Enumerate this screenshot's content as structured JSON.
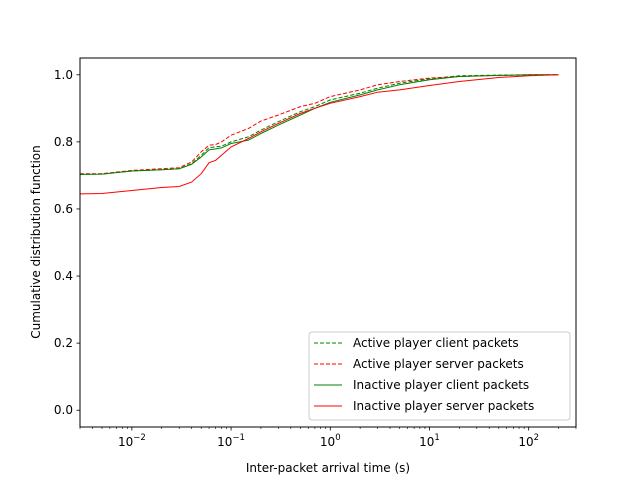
{
  "chart_data": {
    "type": "line",
    "title": "",
    "xlabel": "Inter-packet arrival time (s)",
    "ylabel": "Cumulative distribution function",
    "xscale": "log",
    "xlim": [
      0.003,
      300
    ],
    "ylim": [
      -0.05,
      1.05
    ],
    "x_ticks": [
      {
        "value": 0.01,
        "base": "10",
        "exp": "−2"
      },
      {
        "value": 0.1,
        "base": "10",
        "exp": "−1"
      },
      {
        "value": 1,
        "base": "10",
        "exp": "0"
      },
      {
        "value": 10,
        "base": "10",
        "exp": "1"
      },
      {
        "value": 100,
        "base": "10",
        "exp": "2"
      }
    ],
    "y_ticks": [
      "0.0",
      "0.2",
      "0.4",
      "0.6",
      "0.8",
      "1.0"
    ],
    "grid": false,
    "legend_position": "lower-right",
    "series": [
      {
        "name": "Active player client packets",
        "color": "#008000",
        "dash": "dashed",
        "points": [
          [
            0.003,
            0.703
          ],
          [
            0.005,
            0.704
          ],
          [
            0.01,
            0.713
          ],
          [
            0.02,
            0.717
          ],
          [
            0.03,
            0.72
          ],
          [
            0.04,
            0.735
          ],
          [
            0.05,
            0.76
          ],
          [
            0.06,
            0.783
          ],
          [
            0.07,
            0.785
          ],
          [
            0.08,
            0.787
          ],
          [
            0.1,
            0.8
          ],
          [
            0.15,
            0.815
          ],
          [
            0.2,
            0.835
          ],
          [
            0.3,
            0.86
          ],
          [
            0.5,
            0.89
          ],
          [
            0.7,
            0.905
          ],
          [
            1,
            0.925
          ],
          [
            2,
            0.945
          ],
          [
            3,
            0.96
          ],
          [
            5,
            0.975
          ],
          [
            10,
            0.988
          ],
          [
            20,
            0.997
          ],
          [
            50,
            0.999
          ],
          [
            100,
            1.0
          ],
          [
            200,
            1.0
          ]
        ]
      },
      {
        "name": "Active player server packets",
        "color": "#ff0000",
        "dash": "dashed",
        "points": [
          [
            0.003,
            0.705
          ],
          [
            0.005,
            0.705
          ],
          [
            0.01,
            0.715
          ],
          [
            0.02,
            0.72
          ],
          [
            0.03,
            0.723
          ],
          [
            0.04,
            0.74
          ],
          [
            0.05,
            0.77
          ],
          [
            0.06,
            0.79
          ],
          [
            0.07,
            0.792
          ],
          [
            0.08,
            0.8
          ],
          [
            0.1,
            0.82
          ],
          [
            0.15,
            0.84
          ],
          [
            0.2,
            0.862
          ],
          [
            0.3,
            0.88
          ],
          [
            0.5,
            0.905
          ],
          [
            0.7,
            0.915
          ],
          [
            1,
            0.935
          ],
          [
            2,
            0.955
          ],
          [
            3,
            0.97
          ],
          [
            5,
            0.98
          ],
          [
            10,
            0.99
          ],
          [
            20,
            0.995
          ],
          [
            50,
            0.998
          ],
          [
            100,
            0.999
          ],
          [
            200,
            1.0
          ]
        ]
      },
      {
        "name": "Inactive player client packets",
        "color": "#008000",
        "dash": "solid",
        "points": [
          [
            0.003,
            0.703
          ],
          [
            0.005,
            0.704
          ],
          [
            0.01,
            0.713
          ],
          [
            0.02,
            0.717
          ],
          [
            0.03,
            0.72
          ],
          [
            0.04,
            0.733
          ],
          [
            0.05,
            0.755
          ],
          [
            0.06,
            0.776
          ],
          [
            0.07,
            0.779
          ],
          [
            0.08,
            0.782
          ],
          [
            0.1,
            0.795
          ],
          [
            0.15,
            0.805
          ],
          [
            0.2,
            0.825
          ],
          [
            0.3,
            0.85
          ],
          [
            0.5,
            0.88
          ],
          [
            0.7,
            0.9
          ],
          [
            1,
            0.918
          ],
          [
            2,
            0.94
          ],
          [
            3,
            0.955
          ],
          [
            5,
            0.97
          ],
          [
            10,
            0.985
          ],
          [
            20,
            0.995
          ],
          [
            50,
            0.998
          ],
          [
            100,
            1.0
          ],
          [
            200,
            1.0
          ]
        ]
      },
      {
        "name": "Inactive player server packets",
        "color": "#ff0000",
        "dash": "solid",
        "points": [
          [
            0.003,
            0.645
          ],
          [
            0.005,
            0.646
          ],
          [
            0.01,
            0.655
          ],
          [
            0.02,
            0.664
          ],
          [
            0.03,
            0.667
          ],
          [
            0.04,
            0.68
          ],
          [
            0.05,
            0.705
          ],
          [
            0.06,
            0.738
          ],
          [
            0.07,
            0.745
          ],
          [
            0.08,
            0.76
          ],
          [
            0.1,
            0.785
          ],
          [
            0.15,
            0.81
          ],
          [
            0.2,
            0.83
          ],
          [
            0.3,
            0.855
          ],
          [
            0.5,
            0.885
          ],
          [
            0.7,
            0.9
          ],
          [
            1,
            0.915
          ],
          [
            2,
            0.935
          ],
          [
            3,
            0.948
          ],
          [
            5,
            0.955
          ],
          [
            10,
            0.968
          ],
          [
            20,
            0.98
          ],
          [
            50,
            0.992
          ],
          [
            100,
            0.997
          ],
          [
            200,
            1.0
          ]
        ]
      }
    ]
  }
}
